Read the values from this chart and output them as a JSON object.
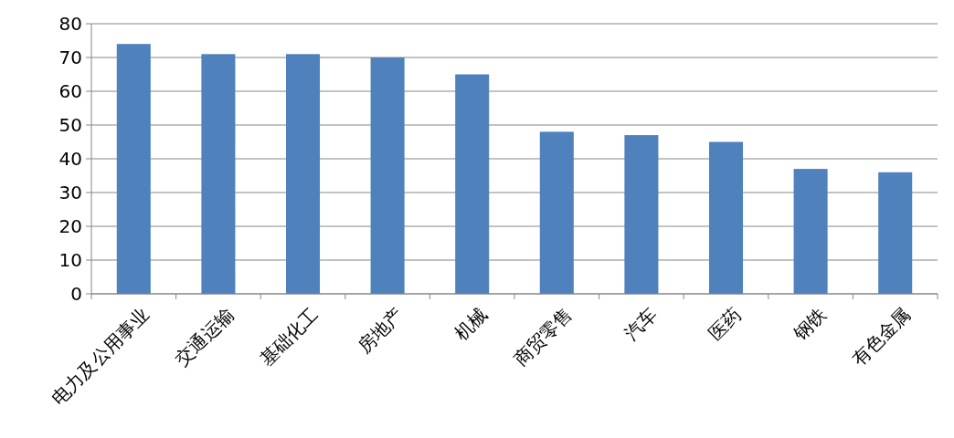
{
  "chart_data": {
    "type": "bar",
    "categories": [
      "电力及公用事业",
      "交通运输",
      "基础化工",
      "房地产",
      "机械",
      "商贸零售",
      "汽车",
      "医药",
      "钢铁",
      "有色金属"
    ],
    "values": [
      74,
      71,
      71,
      70,
      65,
      48,
      47,
      45,
      37,
      36
    ],
    "color": "#4f81bd",
    "ylim": [
      0,
      80
    ],
    "yticks": [
      0,
      10,
      20,
      30,
      40,
      50,
      60,
      70,
      80
    ],
    "grid": "y"
  }
}
